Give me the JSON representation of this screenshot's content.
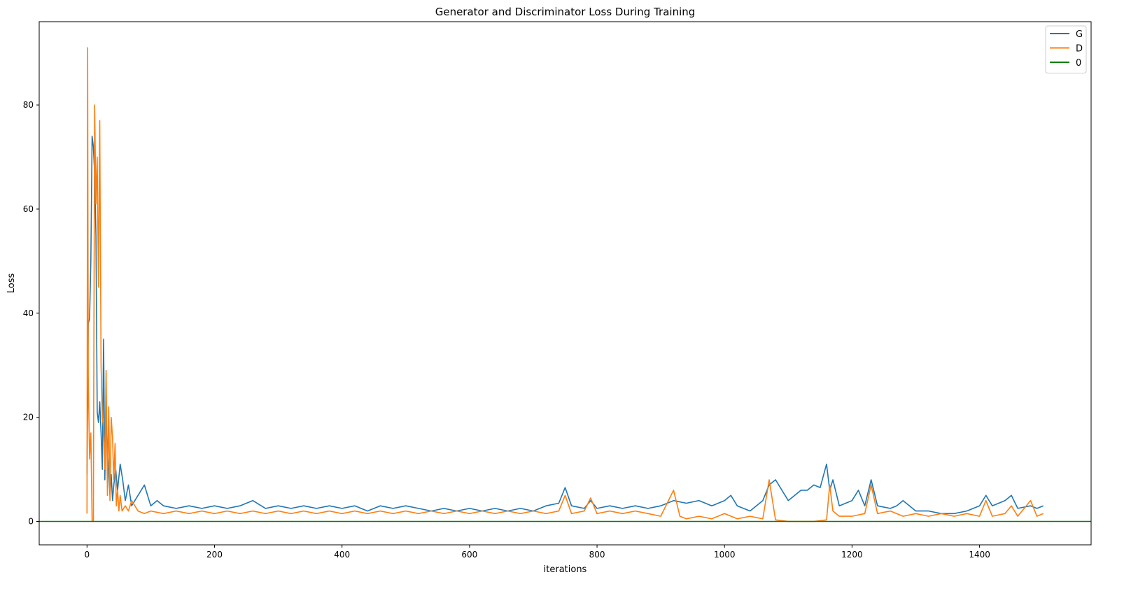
{
  "chart_data": {
    "type": "line",
    "title": "Generator and Discriminator Loss During Training",
    "xlabel": "iterations",
    "ylabel": "Loss",
    "xlim": [
      -75,
      1575
    ],
    "ylim": [
      -4.5,
      96
    ],
    "xticks": [
      0,
      200,
      400,
      600,
      800,
      1000,
      1200,
      1400
    ],
    "yticks": [
      0,
      20,
      40,
      60,
      80
    ],
    "grid": false,
    "legend": {
      "placement": "top-right",
      "entries": [
        "G",
        "D",
        "0"
      ]
    },
    "series": [
      {
        "name": "G",
        "color": "#1f77b4",
        "x": [
          0,
          2,
          4,
          6,
          8,
          10,
          12,
          14,
          16,
          18,
          20,
          22,
          24,
          26,
          28,
          30,
          32,
          34,
          36,
          38,
          40,
          42,
          45,
          48,
          52,
          56,
          60,
          65,
          70,
          80,
          90,
          100,
          110,
          120,
          140,
          160,
          180,
          200,
          220,
          240,
          260,
          280,
          300,
          320,
          340,
          360,
          380,
          400,
          420,
          440,
          460,
          480,
          500,
          520,
          540,
          560,
          580,
          600,
          620,
          640,
          660,
          680,
          700,
          720,
          740,
          750,
          760,
          780,
          790,
          800,
          820,
          840,
          860,
          880,
          900,
          920,
          940,
          960,
          980,
          1000,
          1010,
          1020,
          1040,
          1060,
          1070,
          1080,
          1100,
          1120,
          1130,
          1140,
          1150,
          1160,
          1165,
          1170,
          1180,
          1200,
          1210,
          1220,
          1230,
          1240,
          1260,
          1270,
          1280,
          1300,
          1320,
          1340,
          1360,
          1380,
          1400,
          1410,
          1420,
          1440,
          1450,
          1460,
          1480,
          1490,
          1500
        ],
        "y": [
          9,
          38,
          39,
          50,
          74,
          72,
          67,
          55,
          21,
          19,
          23,
          17,
          10,
          35,
          8,
          21,
          14,
          10,
          5,
          9,
          4,
          7,
          10,
          6,
          11,
          8,
          4,
          7,
          3,
          5,
          7,
          3,
          4,
          3,
          2.5,
          3,
          2.5,
          3,
          2.5,
          3,
          4,
          2.5,
          3,
          2.5,
          3,
          2.5,
          3,
          2.5,
          3,
          2,
          3,
          2.5,
          3,
          2.5,
          2,
          2.5,
          2,
          2.5,
          2,
          2.5,
          2,
          2.5,
          2,
          3,
          3.5,
          6.5,
          3,
          2.5,
          4,
          2.5,
          3,
          2.5,
          3,
          2.5,
          3,
          4,
          3.5,
          4,
          3,
          4,
          5,
          3,
          2,
          4,
          7,
          8,
          4,
          6,
          6,
          7,
          6.5,
          11,
          6,
          8,
          3,
          4,
          6,
          3,
          8,
          3,
          2.5,
          3,
          4,
          2,
          2,
          1.5,
          1.5,
          2,
          3,
          5,
          3,
          4,
          5,
          2.5,
          3,
          2.5,
          3
        ]
      },
      {
        "name": "D",
        "color": "#ff7f0e",
        "x": [
          0,
          1,
          2,
          4,
          6,
          8,
          10,
          12,
          14,
          16,
          18,
          20,
          22,
          24,
          26,
          28,
          30,
          32,
          34,
          36,
          38,
          40,
          42,
          44,
          46,
          48,
          50,
          52,
          55,
          60,
          65,
          70,
          80,
          90,
          100,
          120,
          140,
          160,
          180,
          200,
          220,
          240,
          260,
          280,
          300,
          320,
          340,
          360,
          380,
          400,
          420,
          440,
          460,
          480,
          500,
          520,
          540,
          560,
          580,
          600,
          620,
          640,
          660,
          680,
          700,
          720,
          740,
          750,
          760,
          780,
          790,
          800,
          820,
          840,
          860,
          880,
          900,
          920,
          930,
          940,
          960,
          980,
          1000,
          1020,
          1040,
          1060,
          1070,
          1080,
          1100,
          1120,
          1140,
          1160,
          1165,
          1170,
          1180,
          1200,
          1220,
          1230,
          1240,
          1260,
          1280,
          1300,
          1320,
          1340,
          1360,
          1380,
          1400,
          1410,
          1420,
          1440,
          1450,
          1460,
          1480,
          1490,
          1500
        ],
        "y": [
          1.5,
          91,
          28,
          12,
          17,
          0,
          0,
          80,
          61,
          70,
          45,
          77,
          30,
          20,
          18,
          10,
          29,
          5,
          22,
          4,
          20,
          16,
          8,
          15,
          3,
          6,
          2,
          5,
          2,
          3,
          2,
          4,
          2,
          1.5,
          2,
          1.5,
          2,
          1.5,
          2,
          1.5,
          2,
          1.5,
          2,
          1.5,
          2,
          1.5,
          2,
          1.5,
          2,
          1.5,
          2,
          1.5,
          2,
          1.5,
          2,
          1.5,
          2,
          1.5,
          2,
          1.5,
          2,
          1.5,
          2,
          1.5,
          2,
          1.5,
          2,
          5,
          1.5,
          2,
          4.5,
          1.5,
          2,
          1.5,
          2,
          1.5,
          1,
          6,
          1,
          0.5,
          1,
          0.5,
          1.5,
          0.5,
          1,
          0.5,
          8,
          0.3,
          0,
          0,
          0,
          0.3,
          7,
          2,
          1,
          1,
          1.5,
          7,
          1.5,
          2,
          1,
          1.5,
          1,
          1.5,
          1,
          1.5,
          1,
          4,
          1,
          1.5,
          3,
          1,
          4,
          1,
          1.5
        ]
      },
      {
        "name": "0",
        "color": "#008000",
        "x": [
          -75,
          1575
        ],
        "y": [
          0,
          0
        ]
      }
    ]
  }
}
